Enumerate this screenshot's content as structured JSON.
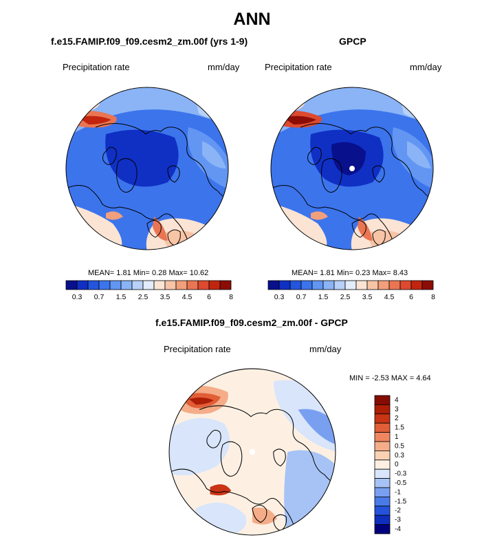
{
  "main_title": "ANN",
  "colors": {
    "seq": [
      "#08108c",
      "#1030c4",
      "#2455dd",
      "#3c74ec",
      "#6296f2",
      "#8ab4f6",
      "#b7d1f8",
      "#e2ecfa",
      "#fbe4d4",
      "#f8c4a6",
      "#f29f7c",
      "#ea7553",
      "#dc4a2f",
      "#c2250f",
      "#8c0d06"
    ],
    "diff": [
      "#00007d",
      "#0f2ebd",
      "#2452da",
      "#4a7ae8",
      "#79a0f0",
      "#a7c3f5",
      "#d8e5fa",
      "#fdf0e3",
      "#f9d2b4",
      "#f4ad88",
      "#ef8660",
      "#e15e36",
      "#c83414",
      "#ac1e06",
      "#850c00"
    ],
    "land_outline": "#000000"
  },
  "chart_data": [
    {
      "type": "heatmap",
      "projection": "polar",
      "title": "f.e15.FAMIP.f09_f09.cesm2_zm.00f (yrs 1-9)",
      "left_label": "Precipitation rate",
      "right_label": "mm/day",
      "stats": {
        "mean_label": "MEAN=",
        "mean": "1.81",
        "min_label": "Min=",
        "min": "0.28",
        "max_label": "Max=",
        "max": "10.62"
      },
      "colorbar": {
        "orientation": "horizontal",
        "tick_labels": [
          "0.3",
          "0.7",
          "1.5",
          "2.5",
          "3.5",
          "4.5",
          "6",
          "8"
        ],
        "levels": [
          0.2,
          0.3,
          0.5,
          0.7,
          1,
          1.5,
          2,
          2.5,
          3,
          3.5,
          4,
          4.5,
          5,
          6,
          7,
          8
        ]
      }
    },
    {
      "type": "heatmap",
      "projection": "polar",
      "title": "GPCP",
      "left_label": "Precipitation rate",
      "right_label": "mm/day",
      "stats": {
        "mean_label": "MEAN=",
        "mean": "1.81",
        "min_label": "Min=",
        "min": "0.23",
        "max_label": "Max=",
        "max": "8.43"
      },
      "colorbar": {
        "orientation": "horizontal",
        "tick_labels": [
          "0.3",
          "0.7",
          "1.5",
          "2.5",
          "3.5",
          "4.5",
          "6",
          "8"
        ],
        "levels": [
          0.2,
          0.3,
          0.5,
          0.7,
          1,
          1.5,
          2,
          2.5,
          3,
          3.5,
          4,
          4.5,
          5,
          6,
          7,
          8
        ]
      }
    },
    {
      "type": "heatmap",
      "projection": "polar",
      "title": "f.e15.FAMIP.f09_f09.cesm2_zm.00f - GPCP",
      "left_label": "Precipitation rate",
      "right_label": "mm/day",
      "stats": {
        "min_label": "MIN =",
        "min": "-2.53",
        "max_label": "MAX =",
        "max": "4.64"
      },
      "colorbar": {
        "orientation": "vertical",
        "tick_labels": [
          "4",
          "3",
          "2",
          "1.5",
          "1",
          "0.5",
          "0.3",
          "0",
          "-0.3",
          "-0.5",
          "-1",
          "-1.5",
          "-2",
          "-3",
          "-4"
        ]
      }
    }
  ]
}
